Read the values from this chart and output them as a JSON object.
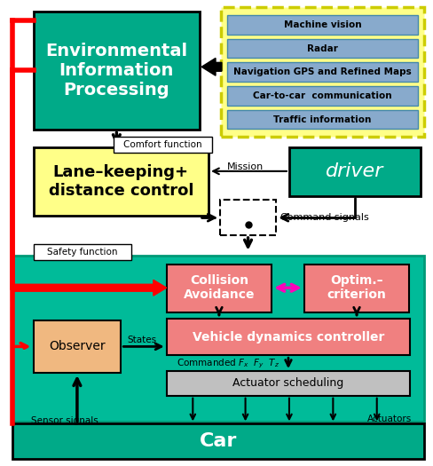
{
  "fig_width": 4.89,
  "fig_height": 5.25,
  "dpi": 100,
  "bg_color": "#ffffff",
  "teal": "#00AA88",
  "pink_red": "#F08080",
  "yellow_border": "#DDDD00",
  "yellow_fill": "#FFFF99",
  "light_blue": "#88AACC",
  "orange_box": "#F0B080",
  "gray_box": "#C0C0C0",
  "eip_teal": "#00AA88",
  "driver_teal": "#00AA88",
  "big_teal": "#00BB99",
  "car_teal": "#00AA88",
  "sensor_labels": [
    "Machine vision",
    "Radar",
    "Navigation GPS and Refined Maps",
    "Car-to-car  communication",
    "Traffic information"
  ],
  "eip_text": "Environmental\nInformation\nProcessing",
  "lk_text": "Lane–keeping+\ndistance control",
  "driver_text": "driver",
  "ca_text": "Collision\nAvoidance",
  "oc_text": "Optim.–\ncriterion",
  "obs_text": "Observer",
  "vdc_text": "Vehicle dynamics controller",
  "act_text": "Actuator scheduling",
  "car_text": "Car",
  "comfort_text": "Comfort function",
  "safety_text": "Safety function",
  "mission_text": "Mission",
  "cmd_text": "Command signals",
  "states_text": "States",
  "sensor_sig_text": "Sensor signals",
  "actuators_text": "Actuators",
  "cmd_fxyz_text": "Commanded $F_x$  $F_y$  $T_z$"
}
